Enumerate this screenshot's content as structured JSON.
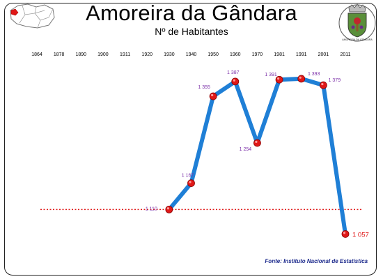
{
  "header": {
    "title": "Amoreira da Gândara",
    "subtitle": "Nº de Habitantes"
  },
  "source": "Fonte: Instituto Nacional de Estatística",
  "coat_of_arms_text": "AMOREIRA DA GÂNDARA",
  "colors": {
    "line": "#1f7fd6",
    "marker": "#e01818",
    "value_label": "#7b2fa8",
    "last_label": "#e01818",
    "reference_line": "#e01818",
    "source_text": "#1c2a8c"
  },
  "chart_data": {
    "type": "line",
    "title": "Amoreira da Gândara",
    "subtitle": "Nº de Habitantes",
    "xlabel": "",
    "ylabel": "",
    "categories": [
      "1864",
      "1878",
      "1890",
      "1900",
      "1911",
      "1920",
      "1930",
      "1940",
      "1950",
      "1960",
      "1970",
      "1981",
      "1991",
      "2001",
      "2011"
    ],
    "series": [
      {
        "values": [
          null,
          null,
          null,
          null,
          null,
          null,
          1110,
          1167,
          1355,
          1387,
          1254,
          1391,
          1393,
          1379,
          1057
        ],
        "labels": [
          "",
          "",
          "",
          "",
          "",
          "",
          "1 110",
          "1 167",
          "1 355",
          "1 387",
          "1 254",
          "1 391",
          "1 393",
          "1 379",
          "1 057"
        ]
      }
    ],
    "reference_line": {
      "value": 1110,
      "style": "dotted"
    },
    "ylim": [
      1020,
      1420
    ],
    "grid": false,
    "legend": "none"
  }
}
